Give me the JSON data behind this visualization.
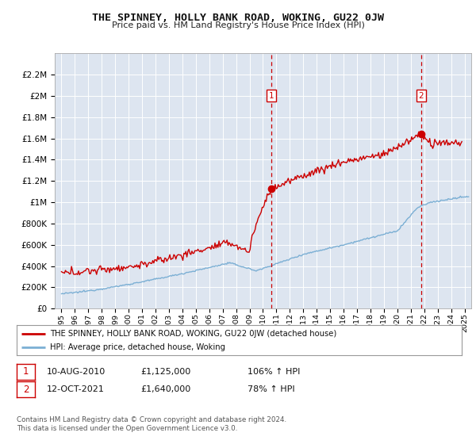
{
  "title": "THE SPINNEY, HOLLY BANK ROAD, WOKING, GU22 0JW",
  "subtitle": "Price paid vs. HM Land Registry's House Price Index (HPI)",
  "plot_bg_color": "#dde5f0",
  "ylim": [
    0,
    2400000
  ],
  "yticks": [
    0,
    200000,
    400000,
    600000,
    800000,
    1000000,
    1200000,
    1400000,
    1600000,
    1800000,
    2000000,
    2200000
  ],
  "ytick_labels": [
    "£0",
    "£200K",
    "£400K",
    "£600K",
    "£800K",
    "£1M",
    "£1.2M",
    "£1.4M",
    "£1.6M",
    "£1.8M",
    "£2M",
    "£2.2M"
  ],
  "xlim_start": 1994.5,
  "xlim_end": 2025.5,
  "xtick_years": [
    1995,
    1996,
    1997,
    1998,
    1999,
    2000,
    2001,
    2002,
    2003,
    2004,
    2005,
    2006,
    2007,
    2008,
    2009,
    2010,
    2011,
    2012,
    2013,
    2014,
    2015,
    2016,
    2017,
    2018,
    2019,
    2020,
    2021,
    2022,
    2023,
    2024,
    2025
  ],
  "red_line_color": "#cc0000",
  "blue_line_color": "#7bafd4",
  "marker1_x": 2010.61,
  "marker1_y": 1125000,
  "marker2_x": 2021.78,
  "marker2_y": 1640000,
  "marker1_label": "1",
  "marker2_label": "2",
  "marker1_date": "10-AUG-2010",
  "marker1_price": "£1,125,000",
  "marker1_hpi": "106% ↑ HPI",
  "marker2_date": "12-OCT-2021",
  "marker2_price": "£1,640,000",
  "marker2_hpi": "78% ↑ HPI",
  "legend_line1": "THE SPINNEY, HOLLY BANK ROAD, WOKING, GU22 0JW (detached house)",
  "legend_line2": "HPI: Average price, detached house, Woking",
  "footer": "Contains HM Land Registry data © Crown copyright and database right 2024.\nThis data is licensed under the Open Government Licence v3.0."
}
